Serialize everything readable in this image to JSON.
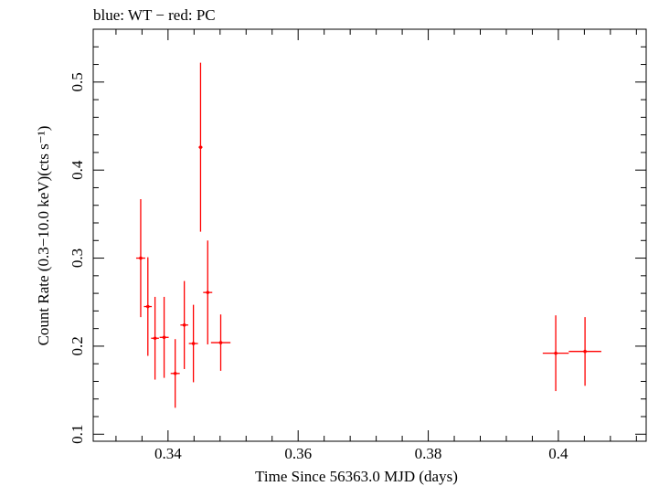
{
  "chart_data": {
    "type": "scatter",
    "title": "blue: WT − red: PC",
    "xlabel": "Time Since 56363.0 MJD (days)",
    "ylabel": "Count Rate (0.3−10.0 keV)(cts s⁻¹)",
    "xlim": [
      0.3285,
      0.4135
    ],
    "ylim": [
      0.092,
      0.56
    ],
    "x_ticks": [
      0.34,
      0.36,
      0.38,
      0.4
    ],
    "x_tick_labels": [
      "0.34",
      "0.36",
      "0.38",
      "0.4"
    ],
    "y_ticks": [
      0.1,
      0.2,
      0.3,
      0.4,
      0.5
    ],
    "y_tick_labels": [
      "0.1",
      "0.2",
      "0.3",
      "0.4",
      "0.5"
    ],
    "grid": false,
    "series": [
      {
        "name": "PC",
        "color": "#ff0000",
        "points": [
          {
            "x": 0.3358,
            "xerr": 0.0007,
            "y": 0.3,
            "yerr": 0.067
          },
          {
            "x": 0.3369,
            "xerr": 0.0006,
            "y": 0.245,
            "yerr": 0.056
          },
          {
            "x": 0.338,
            "xerr": 0.0006,
            "y": 0.209,
            "yerr": 0.047
          },
          {
            "x": 0.3394,
            "xerr": 0.0007,
            "y": 0.21,
            "yerr": 0.046
          },
          {
            "x": 0.3411,
            "xerr": 0.0007,
            "y": 0.169,
            "yerr": 0.039
          },
          {
            "x": 0.3425,
            "xerr": 0.0006,
            "y": 0.224,
            "yerr": 0.05
          },
          {
            "x": 0.3439,
            "xerr": 0.0007,
            "y": 0.203,
            "yerr": 0.044
          },
          {
            "x": 0.345,
            "xerr": 0.0003,
            "y": 0.426,
            "yerr": 0.096
          },
          {
            "x": 0.3461,
            "xerr": 0.0007,
            "y": 0.261,
            "yerr": 0.059
          },
          {
            "x": 0.3481,
            "xerr": 0.0015,
            "y": 0.204,
            "yerr": 0.032
          },
          {
            "x": 0.3996,
            "xerr": 0.002,
            "y": 0.192,
            "yerr": 0.043
          },
          {
            "x": 0.4041,
            "xerr": 0.0025,
            "y": 0.194,
            "yerr": 0.039
          }
        ]
      }
    ]
  }
}
